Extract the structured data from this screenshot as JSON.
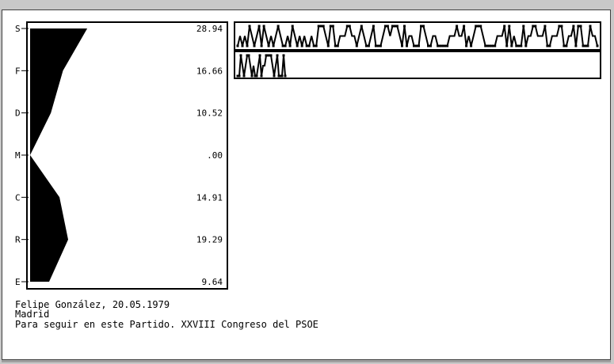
{
  "chart_data": {
    "type": "area",
    "categories": [
      "S",
      "F",
      "D",
      "M",
      "C",
      "R",
      "E"
    ],
    "values": [
      28.94,
      16.66,
      10.52,
      0.0,
      14.91,
      19.29,
      9.64
    ],
    "value_labels": [
      "28.94",
      "16.66",
      "10.52",
      ".00",
      "14.91",
      "19.29",
      "9.64"
    ],
    "orientation": "vertical-profile",
    "xlim": [
      0,
      100
    ],
    "colors": {
      "fill": "#000000",
      "background": "#ffffff"
    },
    "sequence_strips": [
      {
        "levels": [
          2,
          1,
          2,
          1,
          2,
          0,
          1,
          2,
          1,
          0,
          2,
          0,
          1,
          2,
          1,
          2,
          1,
          0,
          1,
          2,
          2,
          1,
          2,
          0,
          1,
          2,
          1,
          2,
          1,
          2,
          2,
          1,
          2,
          2,
          0,
          0,
          0,
          1,
          2,
          0,
          0,
          2,
          2,
          1,
          1,
          1,
          0,
          0,
          1,
          1,
          2,
          1,
          0,
          1,
          2,
          2,
          1,
          0,
          2,
          2,
          2,
          1,
          0,
          0,
          1,
          0,
          0,
          0,
          1,
          2,
          0,
          2,
          1,
          1,
          2,
          2,
          2,
          0,
          0,
          1,
          2,
          2,
          1,
          1,
          2,
          2,
          2,
          2,
          2,
          1,
          1,
          1,
          0,
          1,
          1,
          0,
          2,
          1,
          2,
          1,
          0,
          0,
          0,
          1,
          2,
          2,
          2,
          2,
          2,
          1,
          1,
          1,
          0,
          2,
          0,
          2,
          1,
          2,
          2,
          2,
          0,
          2,
          1,
          1,
          0,
          0,
          1,
          1,
          1,
          0,
          2,
          2,
          1,
          1,
          1,
          0,
          0,
          2,
          2,
          1,
          1,
          0,
          2,
          0,
          0,
          2,
          2,
          2,
          0,
          1,
          1,
          2
        ]
      },
      {
        "levels": [
          2,
          2,
          0,
          1,
          2,
          1,
          0,
          0,
          1,
          2,
          1,
          2,
          2,
          1,
          0,
          2,
          1,
          1,
          0,
          0,
          0,
          0,
          1,
          2,
          1,
          0,
          2,
          2,
          2,
          0,
          2
        ]
      }
    ]
  },
  "caption": {
    "line1": "Felipe González, 20.05.1979",
    "line2": "Madrid",
    "line3": "Para seguir en este Partido. XXVIII Congreso del PSOE"
  }
}
